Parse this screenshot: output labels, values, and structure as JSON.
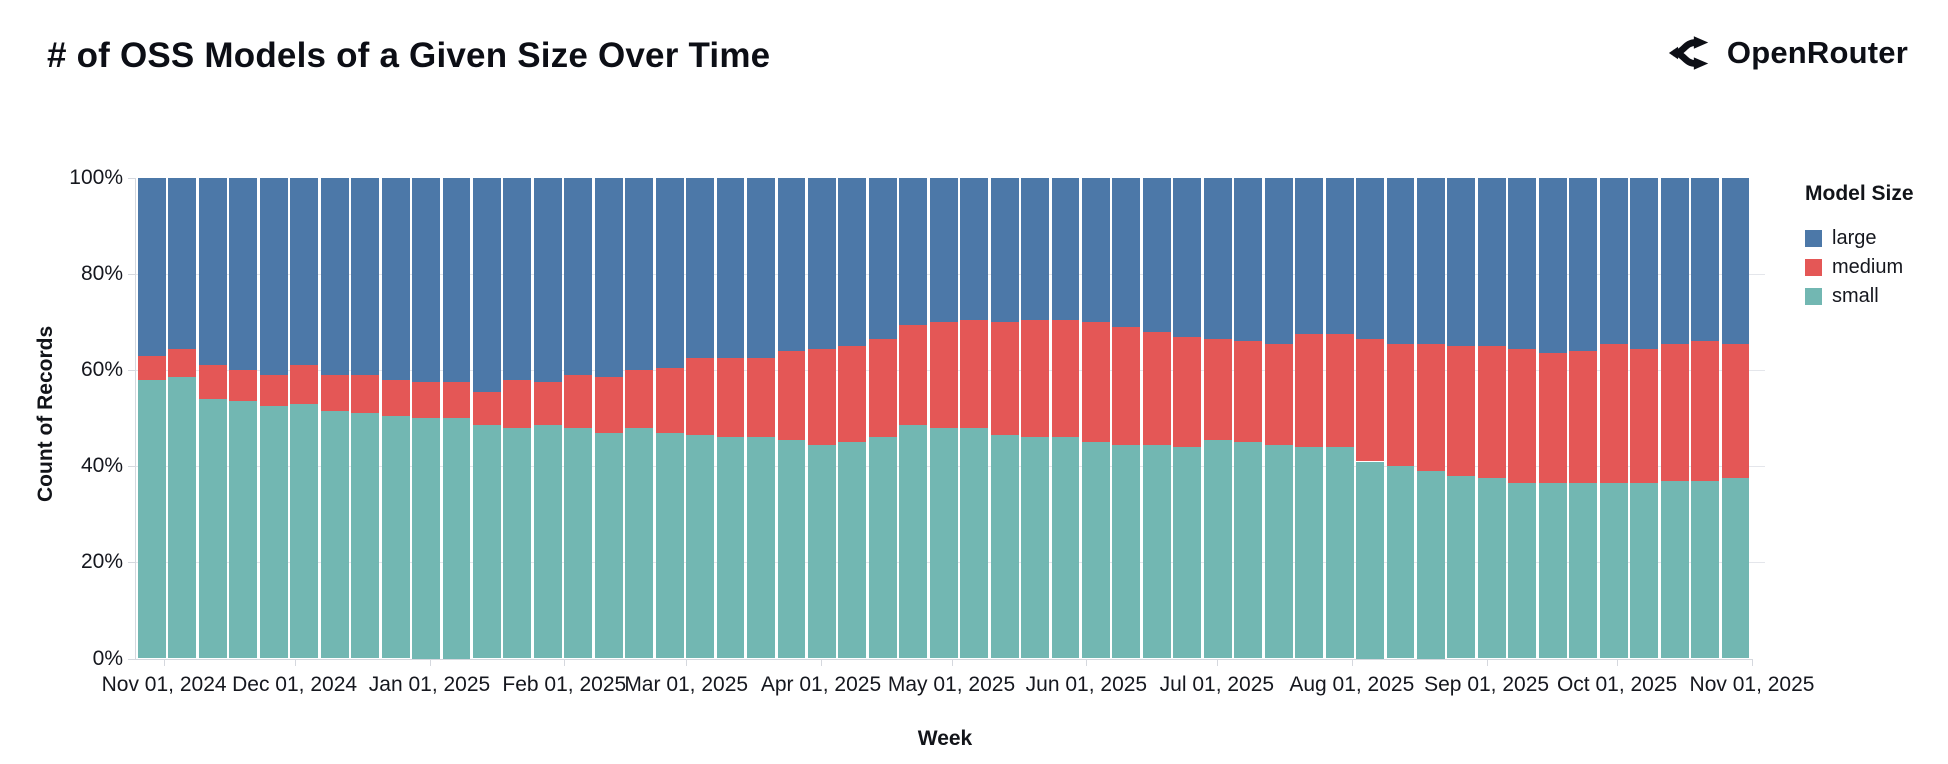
{
  "header": {
    "title": "# of OSS Models of a Given Size Over Time",
    "brand": "OpenRouter"
  },
  "legend": {
    "title": "Model Size",
    "items": [
      {
        "label": "large",
        "color": "#4c78a8"
      },
      {
        "label": "medium",
        "color": "#e45756"
      },
      {
        "label": "small",
        "color": "#72b7b2"
      }
    ]
  },
  "chart_data": {
    "type": "bar",
    "stacked": true,
    "normalized_percent": true,
    "title": "# of OSS Models of a Given Size Over Time",
    "xlabel": "Week",
    "ylabel": "Count of Records",
    "ylim": [
      0,
      100
    ],
    "grid": true,
    "legend_position": "right",
    "colors": {
      "large": "#4c78a8",
      "medium": "#e45756",
      "small": "#72b7b2"
    },
    "y_ticks": [
      {
        "label": "100%",
        "value": 100
      },
      {
        "label": "80%",
        "value": 80
      },
      {
        "label": "60%",
        "value": 60
      },
      {
        "label": "40%",
        "value": 40
      },
      {
        "label": "20%",
        "value": 20
      },
      {
        "label": "0%",
        "value": 0
      }
    ],
    "x_ticks": [
      {
        "label": "Nov 01, 2024",
        "day": 6
      },
      {
        "label": "Dec 01, 2024",
        "day": 36
      },
      {
        "label": "Jan 01, 2025",
        "day": 67
      },
      {
        "label": "Feb 01, 2025",
        "day": 98
      },
      {
        "label": "Mar 01, 2025",
        "day": 126
      },
      {
        "label": "Apr 01, 2025",
        "day": 157
      },
      {
        "label": "May 01, 2025",
        "day": 187
      },
      {
        "label": "Jun 01, 2025",
        "day": 218
      },
      {
        "label": "Jul 01, 2025",
        "day": 248
      },
      {
        "label": "Aug 01, 2025",
        "day": 279
      },
      {
        "label": "Sep 01, 2025",
        "day": 310
      },
      {
        "label": "Oct 01, 2025",
        "day": 340
      },
      {
        "label": "Nov 01, 2025",
        "day": 371
      }
    ],
    "x_span_days": 371,
    "weeks": [
      "2024-10-27",
      "2024-11-03",
      "2024-11-10",
      "2024-11-17",
      "2024-11-24",
      "2024-12-01",
      "2024-12-08",
      "2024-12-15",
      "2024-12-22",
      "2024-12-29",
      "2025-01-05",
      "2025-01-12",
      "2025-01-19",
      "2025-01-26",
      "2025-02-02",
      "2025-02-09",
      "2025-02-16",
      "2025-02-23",
      "2025-03-02",
      "2025-03-09",
      "2025-03-16",
      "2025-03-23",
      "2025-03-30",
      "2025-04-06",
      "2025-04-13",
      "2025-04-20",
      "2025-04-27",
      "2025-05-04",
      "2025-05-11",
      "2025-05-18",
      "2025-05-25",
      "2025-06-01",
      "2025-06-08",
      "2025-06-15",
      "2025-06-22",
      "2025-06-29",
      "2025-07-06",
      "2025-07-13",
      "2025-07-20",
      "2025-07-27",
      "2025-08-03",
      "2025-08-10",
      "2025-08-17",
      "2025-08-24",
      "2025-08-31",
      "2025-09-07",
      "2025-09-14",
      "2025-09-21",
      "2025-09-28",
      "2025-10-05",
      "2025-10-12",
      "2025-10-19",
      "2025-10-26"
    ],
    "series": [
      {
        "name": "small",
        "color": "#72b7b2",
        "values": [
          58,
          58.5,
          54,
          53.5,
          52.5,
          53,
          51.5,
          51,
          50.5,
          50,
          50,
          48.5,
          48,
          48.5,
          48,
          47,
          48,
          47,
          46.5,
          46,
          46,
          45.5,
          44.5,
          45,
          46,
          48.5,
          48,
          48,
          46.5,
          46,
          46,
          45,
          44.5,
          44.5,
          44,
          45.5,
          45,
          44.5,
          44,
          44,
          41,
          40,
          39,
          38,
          37.5,
          36.5,
          36.5,
          36.5,
          36.5,
          36.5,
          37,
          37,
          37.5
        ]
      },
      {
        "name": "medium",
        "color": "#e45756",
        "values": [
          5,
          6,
          7,
          6.5,
          6.5,
          8,
          7.5,
          8,
          7.5,
          7.5,
          7.5,
          7,
          10,
          9,
          11,
          11.5,
          12,
          13.5,
          16,
          16.5,
          16.5,
          18.5,
          20,
          20,
          20.5,
          21,
          22,
          22.5,
          23.5,
          24.5,
          24.5,
          25,
          24.5,
          23.5,
          23,
          21,
          21,
          21,
          23.5,
          23.5,
          25.5,
          25.5,
          26.5,
          27,
          27.5,
          28,
          27,
          27.5,
          29,
          28,
          28.5,
          29,
          28
        ]
      },
      {
        "name": "large",
        "color": "#4c78a8",
        "values": [
          37,
          35.5,
          39,
          40,
          41,
          39,
          41,
          41,
          42,
          42.5,
          42.5,
          44.5,
          42,
          42.5,
          41,
          41.5,
          40,
          39.5,
          37.5,
          37.5,
          37.5,
          36,
          35.5,
          35,
          33.5,
          30.5,
          30,
          29.5,
          30,
          29.5,
          29.5,
          30,
          31,
          32,
          33,
          33.5,
          34,
          34.5,
          32.5,
          32.5,
          33.5,
          34.5,
          34.5,
          35,
          35,
          35.5,
          36.5,
          36,
          34.5,
          35.5,
          34.5,
          34,
          34.5
        ]
      }
    ]
  }
}
